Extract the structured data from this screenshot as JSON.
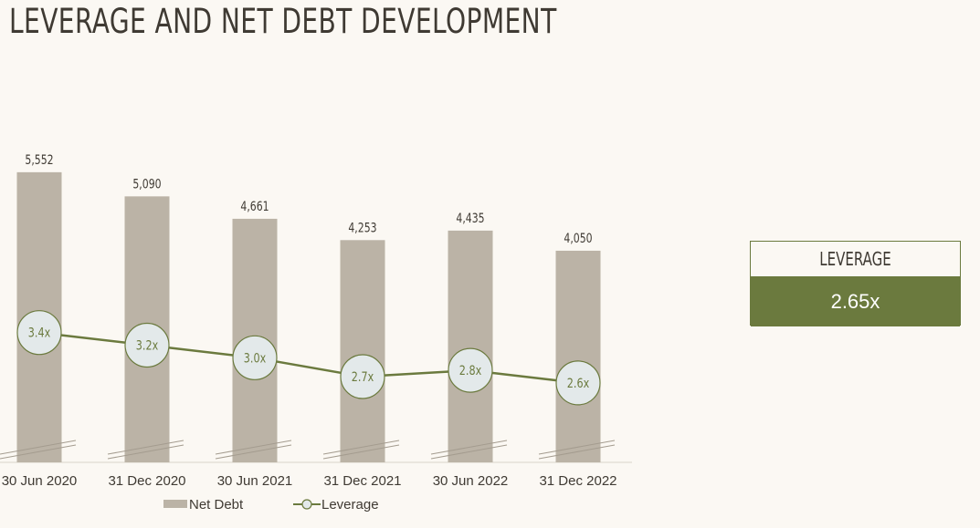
{
  "page": {
    "title": "LEVERAGE AND NET DEBT DEVELOPMENT"
  },
  "kpi": {
    "label": "LEVERAGE",
    "value": "2.65x"
  },
  "colors": {
    "bar": "#bbb3a6",
    "line": "#6b7a3e",
    "marker_fill": "#e3e9ea",
    "text": "#3f3a33",
    "accent": "#6b7a3e"
  },
  "chart_data": {
    "type": "bar",
    "categories": [
      "30 Jun 2020",
      "31 Dec 2020",
      "30 Jun 2021",
      "31 Dec 2021",
      "30 Jun 2022",
      "31 Dec 2022"
    ],
    "series": [
      {
        "name": "Net Debt",
        "type": "bar",
        "values": [
          5552,
          5090,
          4661,
          4253,
          4435,
          4050
        ],
        "labels": [
          "5,552",
          "5,090",
          "4,661",
          "4,253",
          "4,435",
          "4,050"
        ]
      },
      {
        "name": "Leverage",
        "type": "line",
        "values": [
          3.4,
          3.2,
          3.0,
          2.7,
          2.8,
          2.6
        ],
        "labels": [
          "3.4x",
          "3.2x",
          "3.0x",
          "2.7x",
          "2.8x",
          "2.6x"
        ]
      }
    ],
    "axis_break": true,
    "legend": "bottom-center",
    "grid": false
  }
}
